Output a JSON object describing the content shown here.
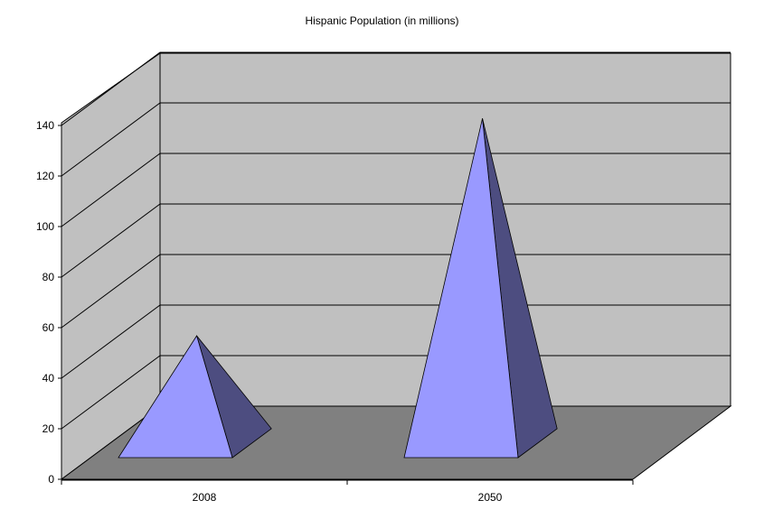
{
  "chart_data": {
    "type": "bar",
    "title": "Hispanic Population (in millions)",
    "categories": [
      "2008",
      "2050"
    ],
    "values": [
      47,
      133
    ],
    "ylim": [
      0,
      140
    ],
    "y_ticks": [
      0,
      20,
      40,
      60,
      80,
      100,
      120,
      140
    ],
    "xlabel": "",
    "ylabel": "",
    "grid": true,
    "legend": "none",
    "colors": {
      "wall": "#c0c0c0",
      "floor": "#808080",
      "bar_front": "#9999ff",
      "bar_side": "#4d4d80",
      "grid": "#000000"
    }
  }
}
